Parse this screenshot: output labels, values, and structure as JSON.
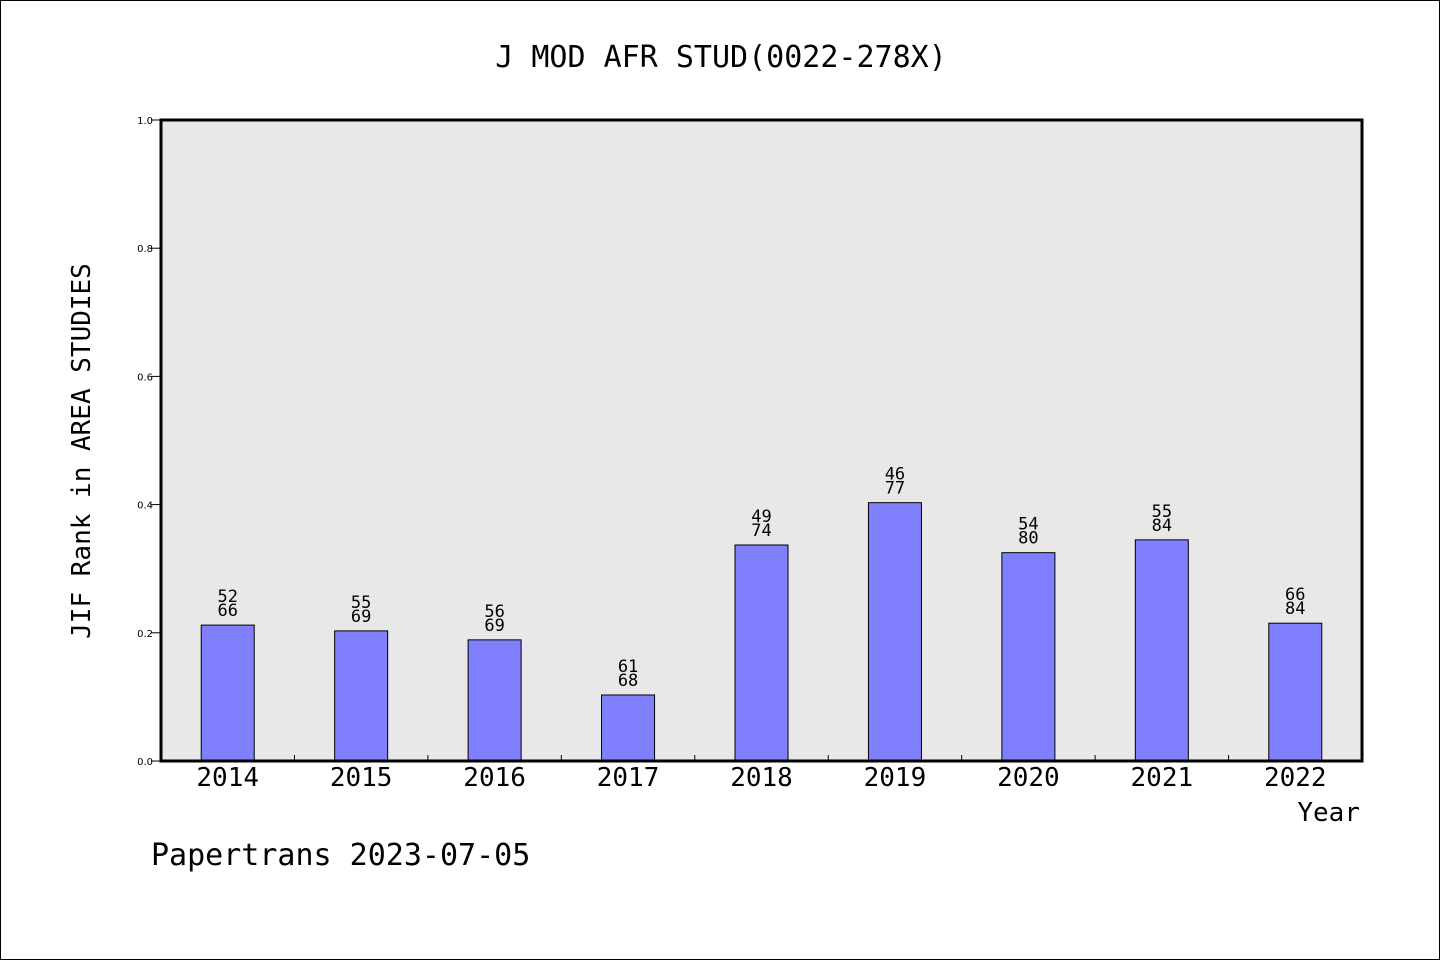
{
  "chart_data": {
    "type": "bar",
    "title": "J MOD AFR STUD(0022-278X)",
    "xlabel": "Year",
    "ylabel": "JIF Rank in AREA STUDIES",
    "ylim": [
      0,
      1.0
    ],
    "yticks": [
      "0.0",
      "0.2",
      "0.4",
      "0.6",
      "0.8",
      "1.0"
    ],
    "grid": false,
    "categories": [
      "2014",
      "2015",
      "2016",
      "2017",
      "2018",
      "2019",
      "2020",
      "2021",
      "2022"
    ],
    "values": [
      0.212,
      0.203,
      0.189,
      0.103,
      0.337,
      0.403,
      0.325,
      0.345,
      0.215
    ],
    "labels_top": [
      "52",
      "55",
      "56",
      "61",
      "49",
      "46",
      "54",
      "55",
      "66"
    ],
    "labels_bottom": [
      "66",
      "69",
      "69",
      "68",
      "74",
      "77",
      "80",
      "84",
      "84"
    ],
    "colors": {
      "bar": "#8080ff",
      "plot_bg": "#e8e8e8"
    }
  },
  "footer": "Papertrans 2023-07-05"
}
